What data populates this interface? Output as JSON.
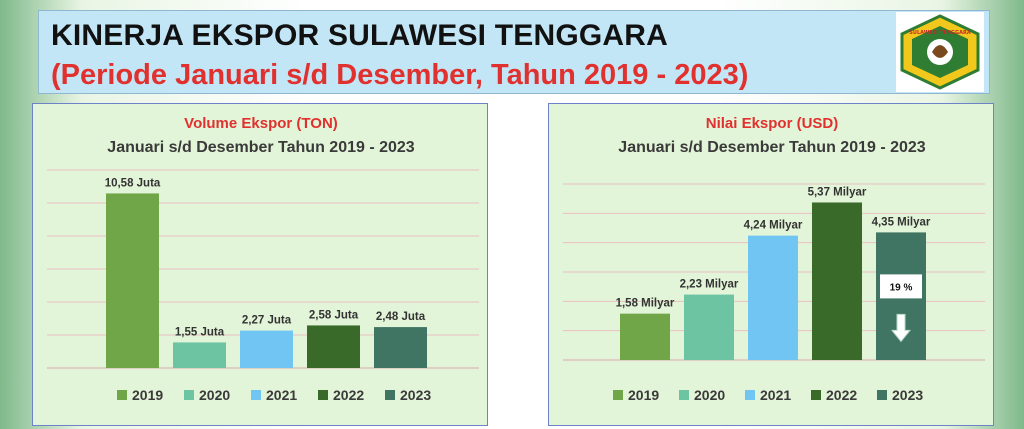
{
  "header": {
    "title": "KINERJA EKSPOR SULAWESI TENGGARA",
    "subtitle": "(Periode Januari s/d Desember, Tahun 2019 - 2023)",
    "logo_text": "SULAWESI TENGGARA"
  },
  "colors": {
    "2019": "#70a647",
    "2020": "#6cc4a3",
    "2021": "#70c5f2",
    "2022": "#3a6a2a",
    "2023": "#3f7562",
    "banner_bg": "#c3e6f7",
    "title_red": "#e0312f"
  },
  "chart_data": [
    {
      "type": "bar",
      "title": "Volume Ekspor (TON)",
      "subtitle": "Januari s/d Desember Tahun 2019 - 2023",
      "categories": [
        "2019",
        "2020",
        "2021",
        "2022",
        "2023"
      ],
      "values": [
        10.58,
        1.55,
        2.27,
        2.58,
        2.48
      ],
      "unit": "Juta",
      "data_labels": [
        "10,58 Juta",
        "1,55 Juta",
        "2,27 Juta",
        "2,58 Juta",
        "2,48 Juta"
      ],
      "legend": [
        "2019",
        "2020",
        "2021",
        "2022",
        "2023"
      ],
      "legend_position": "bottom",
      "ylim": [
        0,
        12
      ],
      "grid": true
    },
    {
      "type": "bar",
      "title": "Nilai Ekspor (USD)",
      "subtitle": "Januari s/d Desember Tahun 2019 - 2023",
      "categories": [
        "2019",
        "2020",
        "2021",
        "2022",
        "2023"
      ],
      "values": [
        1.58,
        2.23,
        4.24,
        5.37,
        4.35
      ],
      "unit": "Milyar",
      "data_labels": [
        "1,58 Milyar",
        "2,23 Milyar",
        "4,24 Milyar",
        "5,37 Milyar",
        "4,35 Milyar"
      ],
      "legend": [
        "2019",
        "2020",
        "2021",
        "2022",
        "2023"
      ],
      "legend_position": "bottom",
      "ylim": [
        0,
        6
      ],
      "grid": true,
      "annotation": {
        "category": "2023",
        "text": "19 %",
        "icon": "arrow-down-icon"
      }
    }
  ]
}
